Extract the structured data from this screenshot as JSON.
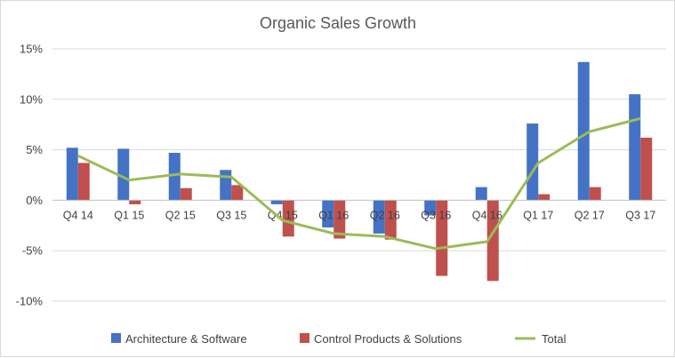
{
  "chart_data": {
    "type": "bar",
    "title": "Organic Sales Growth",
    "xlabel": "",
    "ylabel": "",
    "ylim": [
      -10,
      15
    ],
    "y_ticks": [
      15,
      10,
      5,
      0,
      -5,
      -10
    ],
    "y_tick_labels": [
      "15%",
      "10%",
      "5%",
      "0%",
      "-5%",
      "-10%"
    ],
    "grid": true,
    "legend_position": "bottom",
    "categories": [
      "Q4 14",
      "Q1 15",
      "Q2 15",
      "Q3 15",
      "Q4 15",
      "Q1 16",
      "Q2 16",
      "Q3 16",
      "Q4 16",
      "Q1 17",
      "Q2 17",
      "Q3 17"
    ],
    "series": [
      {
        "name": "Architecture & Software",
        "type": "bar",
        "color": "#4472c4",
        "values": [
          5.2,
          5.1,
          4.7,
          3.0,
          -0.4,
          -2.7,
          -3.3,
          -1.5,
          1.3,
          7.6,
          13.7,
          10.5
        ]
      },
      {
        "name": "Control Products & Solutions",
        "type": "bar",
        "color": "#c0504d",
        "values": [
          3.7,
          -0.4,
          1.2,
          1.5,
          -3.6,
          -3.8,
          -3.9,
          -7.5,
          -8.0,
          0.6,
          1.3,
          6.2
        ]
      },
      {
        "name": "Total",
        "type": "line",
        "color": "#9bbb59",
        "values": [
          4.4,
          2.0,
          2.6,
          2.3,
          -2.0,
          -3.3,
          -3.6,
          -4.8,
          -4.1,
          3.7,
          6.8,
          8.1
        ]
      }
    ]
  }
}
